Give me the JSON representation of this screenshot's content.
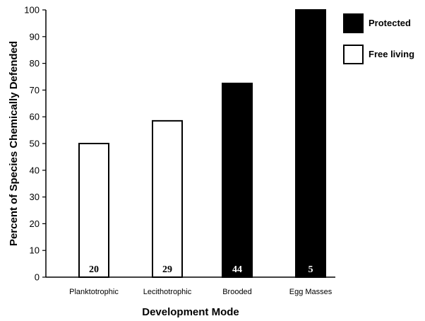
{
  "chart_data": {
    "type": "bar",
    "categories": [
      "Planktotrophic",
      "Lecithotrophic",
      "Brooded",
      "Egg Masses"
    ],
    "values": [
      50,
      58.5,
      72.5,
      100
    ],
    "bar_labels": [
      "20",
      "29",
      "44",
      "5"
    ],
    "bar_groups": [
      "Free living",
      "Free living",
      "Protected",
      "Protected"
    ],
    "title": "",
    "xlabel": "Development Mode",
    "ylabel": "Percent of Species Chemically Defended",
    "ylim": [
      0,
      100
    ],
    "yticks": [
      0,
      10,
      20,
      30,
      40,
      50,
      60,
      70,
      80,
      90,
      100
    ],
    "grid": false,
    "legend_position": "top-right",
    "legend": [
      {
        "label": "Protected",
        "color": "#000000"
      },
      {
        "label": "Free living",
        "color": "#ffffff"
      }
    ]
  }
}
